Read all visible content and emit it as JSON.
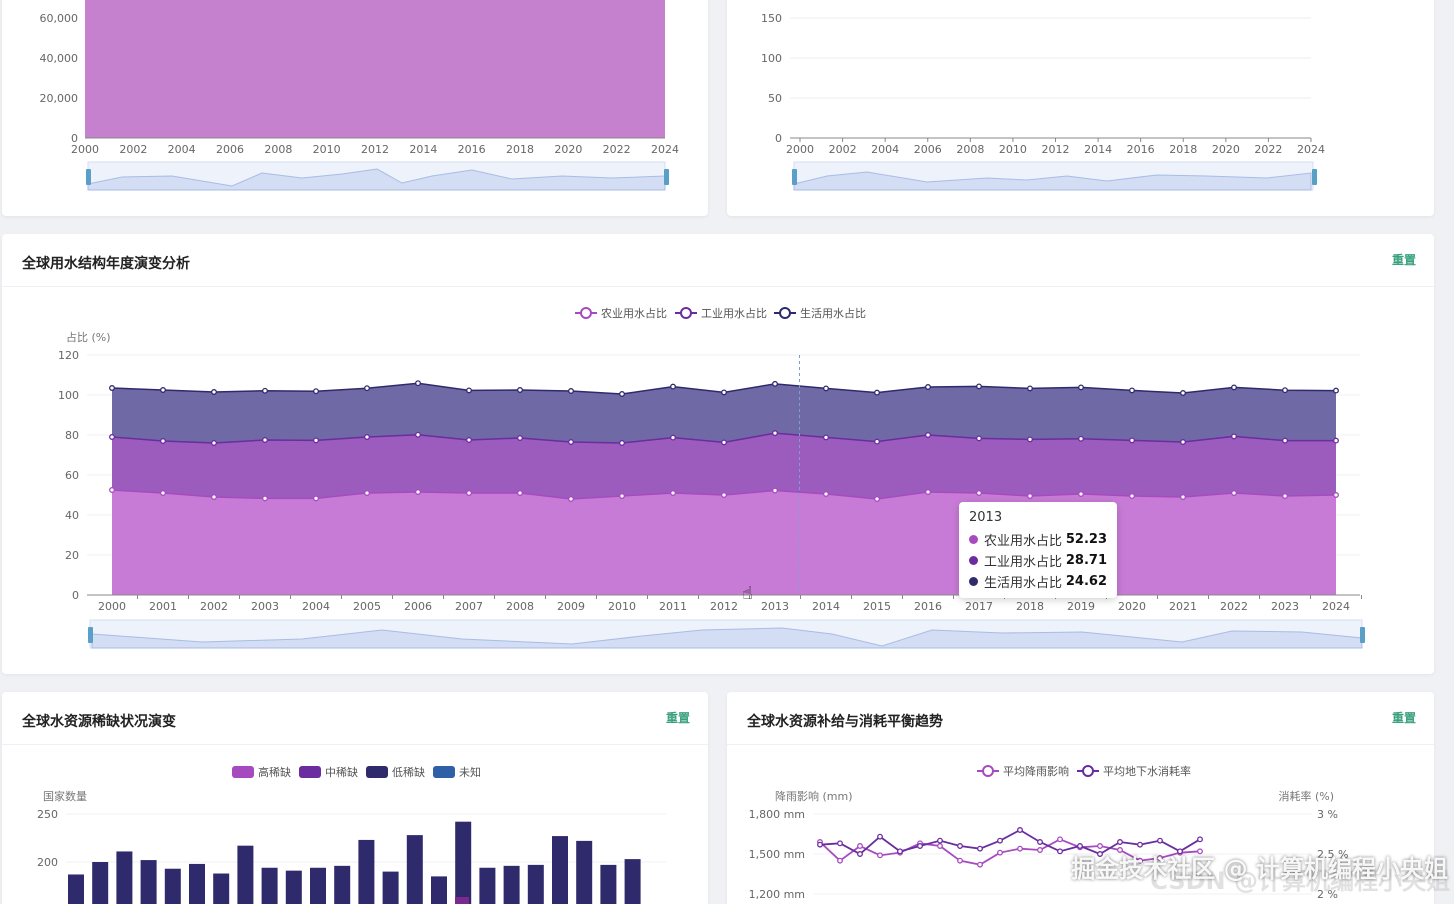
{
  "top_left": {
    "y_ticks": [
      "60,000",
      "40,000",
      "20,000",
      "0"
    ],
    "x_ticks": [
      "2000",
      "2002",
      "2004",
      "2006",
      "2008",
      "2010",
      "2012",
      "2014",
      "2016",
      "2018",
      "2020",
      "2022",
      "2024"
    ],
    "color": "#c27acb"
  },
  "top_right": {
    "y_ticks": [
      "150",
      "100",
      "50",
      "0"
    ],
    "x_ticks": [
      "2000",
      "2002",
      "2004",
      "2006",
      "2008",
      "2010",
      "2012",
      "2014",
      "2016",
      "2018",
      "2020",
      "2022",
      "2024"
    ]
  },
  "main": {
    "title": "全球用水结构年度演变分析",
    "reset_label": "重置",
    "y_axis_name": "占比 (%)",
    "legend": [
      "农业用水占比",
      "工业用水占比",
      "生活用水占比"
    ],
    "colors": {
      "agri": "#a64bbf",
      "ind": "#6a2c9e",
      "dom": "#2e2a6b"
    },
    "tooltip": {
      "year": "2013",
      "rows": [
        {
          "name": "农业用水占比",
          "value": "52.23",
          "color": "#a64bbf"
        },
        {
          "name": "工业用水占比",
          "value": "28.71",
          "color": "#6a2c9e"
        },
        {
          "name": "生活用水占比",
          "value": "24.62",
          "color": "#2e2a6b"
        }
      ]
    }
  },
  "chart_data": [
    {
      "type": "area",
      "title": "全球用水结构年度演变分析",
      "ylabel": "占比 (%)",
      "ylim": [
        0,
        120
      ],
      "stacked": true,
      "legend": "top-center",
      "x": [
        "2000",
        "2001",
        "2002",
        "2003",
        "2004",
        "2005",
        "2006",
        "2007",
        "2008",
        "2009",
        "2010",
        "2011",
        "2012",
        "2013",
        "2014",
        "2015",
        "2016",
        "2017",
        "2018",
        "2019",
        "2020",
        "2021",
        "2022",
        "2023",
        "2024"
      ],
      "series": [
        {
          "name": "农业用水占比",
          "values": [
            52.5,
            51,
            49,
            48.3,
            48.3,
            51,
            51.5,
            51,
            51,
            48,
            49.5,
            51,
            50,
            52.23,
            50.5,
            48,
            51.5,
            51,
            49.5,
            50.5,
            49.5,
            49,
            51,
            49.5,
            50
          ]
        },
        {
          "name": "工业用水占比",
          "values": [
            26.5,
            26,
            27,
            29.2,
            29,
            28,
            28.6,
            26.5,
            27.5,
            28.5,
            26.5,
            27.7,
            26.3,
            28.71,
            28.3,
            28.7,
            28.5,
            27.3,
            28.3,
            27.6,
            27.8,
            27.5,
            28.3,
            27.7,
            27.2
          ]
        },
        {
          "name": "生活用水占比",
          "values": [
            24.5,
            25.5,
            25.5,
            24.6,
            24.6,
            24.4,
            25.8,
            24.8,
            24,
            25.5,
            24.5,
            25.5,
            25,
            24.62,
            24.5,
            24.5,
            24,
            26,
            25.5,
            25.7,
            25,
            24.5,
            24.5,
            25.2,
            25
          ]
        }
      ],
      "selected_x": "2013"
    },
    {
      "type": "bar",
      "title": "全球水资源稀缺状况演变",
      "ylabel": "国家数量",
      "legend": "top-center",
      "series_names": [
        "高稀缺",
        "中稀缺",
        "低稀缺",
        "未知"
      ],
      "values": [
        187,
        200,
        211,
        202,
        193,
        198,
        188,
        217,
        194,
        191,
        194,
        196,
        223,
        190,
        228,
        185,
        242,
        194,
        196,
        197,
        227,
        222,
        197,
        203
      ]
    },
    {
      "type": "line",
      "title": "全球水资源补给与消耗平衡趋势",
      "ylabel": "降雨影响 (mm)",
      "y2label": "消耗率 (%)",
      "legend": "top-center",
      "series": [
        {
          "name": "平均降雨影响",
          "values": [
            1590,
            1450,
            1560,
            1490,
            1510,
            1580,
            1560,
            1450,
            1420,
            1510,
            1540,
            1530,
            1610,
            1550,
            1560,
            1530,
            1450,
            1470,
            1510,
            1520
          ]
        },
        {
          "name": "平均地下水消耗率",
          "values": [
            1570,
            1580,
            1500,
            1630,
            1520,
            1560,
            1600,
            1560,
            1540,
            1600,
            1680,
            1590,
            1520,
            1560,
            1500,
            1590,
            1570,
            1600,
            1520,
            1610
          ]
        }
      ]
    }
  ],
  "bottom_left": {
    "title": "全球水资源稀缺状况演变",
    "reset_label": "重置",
    "y_axis_name": "国家数量",
    "y_ticks": [
      "250",
      "200"
    ],
    "legend": [
      {
        "label": "高稀缺",
        "color": "#a64bbf"
      },
      {
        "label": "中稀缺",
        "color": "#6a2c9e"
      },
      {
        "label": "低稀缺",
        "color": "#2e2a6b"
      },
      {
        "label": "未知",
        "color": "#2f5fa7"
      }
    ]
  },
  "bottom_right": {
    "title": "全球水资源补给与消耗平衡趋势",
    "reset_label": "重置",
    "y_axis_name": "降雨影响 (mm)",
    "y2_axis_name": "消耗率 (%)",
    "y_ticks": [
      "1,800 mm",
      "1,500 mm",
      "1,200 mm"
    ],
    "y2_ticks": [
      "3 %",
      "2.5 %",
      "2 %"
    ],
    "legend": [
      "平均降雨影响",
      "平均地下水消耗率"
    ]
  },
  "watermark": {
    "line1": "掘金技术社区 @ 计算机编程小央姐",
    "line2": "CSDN @计算机编程小央姐"
  }
}
